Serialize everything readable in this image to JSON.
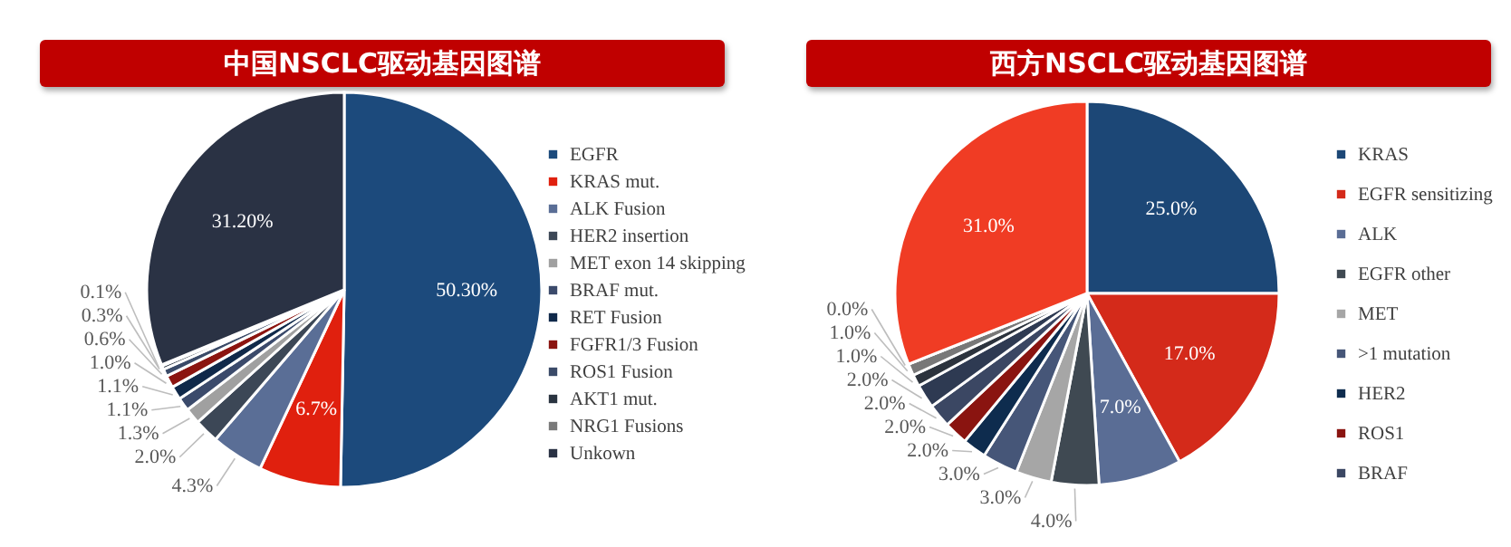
{
  "chart_data": [
    {
      "type": "pie",
      "title": "中国NSCLC驱动基因图谱",
      "categories": [
        "EGFR",
        "KRAS mut.",
        "ALK Fusion",
        "HER2 insertion",
        "MET exon 14 skipping",
        "BRAF mut.",
        "RET Fusion",
        "FGFR1/3 Fusion",
        "ROS1 Fusion",
        "AKT1 mut.",
        "NRG1 Fusions",
        "Unkown"
      ],
      "values": [
        50.3,
        6.7,
        4.3,
        2.0,
        1.3,
        1.1,
        1.1,
        1.0,
        0.6,
        0.3,
        0.1,
        31.2
      ],
      "value_labels": [
        "50.30%",
        "6.7%",
        "4.3%",
        "2.0%",
        "1.3%",
        "1.1%",
        "1.1%",
        "1.0%",
        "0.6%",
        "0.3%",
        "0.1%",
        "31.20%"
      ],
      "colors": [
        "#1c4a7c",
        "#e0200e",
        "#5a6e96",
        "#3c4756",
        "#a0a0a0",
        "#3b4a6b",
        "#10294a",
        "#8b1410",
        "#3a4a68",
        "#2a3440",
        "#7a7a7a",
        "#2a3244"
      ],
      "legend": "right"
    },
    {
      "type": "pie",
      "title": "西方NSCLC驱动基因图谱",
      "categories": [
        "KRAS",
        "EGFR sensitizing",
        "ALK",
        "EGFR other",
        "MET",
        ">1 mutation",
        "HER2",
        "ROS1",
        "BRAF",
        null,
        null,
        null,
        null,
        null
      ],
      "values": [
        25.0,
        17.0,
        7.0,
        4.0,
        3.0,
        3.0,
        2.0,
        2.0,
        2.0,
        2.0,
        1.0,
        1.0,
        0.0,
        31.0
      ],
      "value_labels": [
        "25.0%",
        "17.0%",
        "7.0%",
        "4.0%",
        "3.0%",
        "3.0%",
        "2.0%",
        "2.0%",
        "2.0%",
        "2.0%",
        "1.0%",
        "1.0%",
        "0.0%",
        "31.0%"
      ],
      "colors": [
        "#1c4776",
        "#d42a1a",
        "#5a6d95",
        "#3f4952",
        "#a6a6a6",
        "#465678",
        "#0e2c4e",
        "#8a1410",
        "#3b4763",
        "#2e3a52",
        "#2c333d",
        "#787878",
        "#33415e",
        "#f03c24"
      ],
      "legend": "right"
    }
  ]
}
